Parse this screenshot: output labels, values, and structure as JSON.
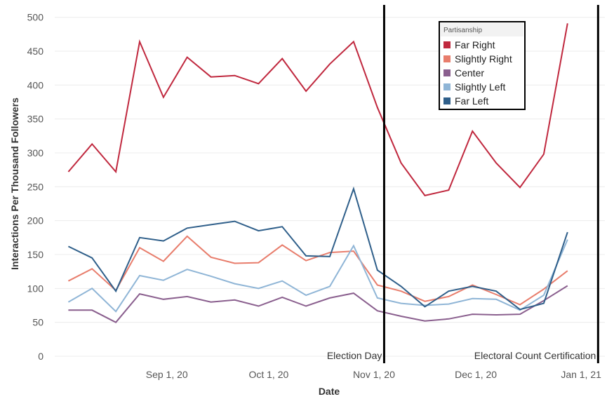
{
  "chart_data": {
    "type": "line",
    "xlabel": "Date",
    "ylabel": "Interactions Per Thousand Followers",
    "x_axis_kind": "date",
    "xlim": [
      "2020-07-30",
      "2021-01-08"
    ],
    "ylim": [
      0,
      510
    ],
    "y_ticks": [
      0,
      50,
      100,
      150,
      200,
      250,
      300,
      350,
      400,
      450,
      500
    ],
    "x_ticks": [
      {
        "date": "2020-09-01",
        "label": "Sep 1, 20"
      },
      {
        "date": "2020-10-01",
        "label": "Oct 1, 20"
      },
      {
        "date": "2020-11-01",
        "label": "Nov 1, 20"
      },
      {
        "date": "2020-12-01",
        "label": "Dec 1, 20"
      },
      {
        "date": "2021-01-01",
        "label": "Jan 1, 21"
      }
    ],
    "grid": "horizontal",
    "x": [
      "2020-08-03",
      "2020-08-10",
      "2020-08-17",
      "2020-08-24",
      "2020-08-31",
      "2020-09-07",
      "2020-09-14",
      "2020-09-21",
      "2020-09-28",
      "2020-10-05",
      "2020-10-12",
      "2020-10-19",
      "2020-10-26",
      "2020-11-02",
      "2020-11-09",
      "2020-11-16",
      "2020-11-23",
      "2020-11-30",
      "2020-12-07",
      "2020-12-14",
      "2020-12-21",
      "2020-12-28",
      "2021-01-04"
    ],
    "series": [
      {
        "name": "Far Right",
        "color": "#c0283e",
        "values": [
          272,
          313,
          272,
          464,
          382,
          441,
          412,
          414,
          402,
          439,
          391,
          431,
          464,
          367,
          285,
          237,
          245,
          332,
          285,
          249,
          298,
          491,
          null
        ]
      },
      {
        "name": "Slightly Right",
        "color": "#e87d6c",
        "values": [
          111,
          129,
          97,
          160,
          140,
          177,
          146,
          137,
          138,
          164,
          141,
          153,
          155,
          105,
          96,
          81,
          88,
          105,
          91,
          76,
          99,
          126,
          null
        ]
      },
      {
        "name": "Center",
        "color": "#8a5f8e",
        "values": [
          68,
          68,
          50,
          92,
          84,
          88,
          80,
          83,
          74,
          87,
          74,
          86,
          93,
          67,
          59,
          52,
          55,
          62,
          61,
          62,
          82,
          104,
          null
        ]
      },
      {
        "name": "Slightly Left",
        "color": "#8fb5d6",
        "values": [
          80,
          100,
          66,
          119,
          112,
          128,
          118,
          107,
          100,
          111,
          90,
          103,
          163,
          86,
          78,
          75,
          77,
          85,
          84,
          68,
          90,
          172,
          null
        ]
      },
      {
        "name": "Far Left",
        "color": "#2f5f8a",
        "values": [
          162,
          145,
          96,
          175,
          170,
          189,
          194,
          199,
          185,
          191,
          148,
          147,
          247,
          127,
          103,
          73,
          96,
          103,
          96,
          69,
          78,
          183,
          null
        ]
      }
    ],
    "annotations": [
      {
        "date": "2020-11-04",
        "label": "Election Day"
      },
      {
        "date": "2021-01-06",
        "label": "Electoral Count Certification"
      }
    ],
    "legend": {
      "title": "Partisanship",
      "placement": "top-right"
    }
  }
}
